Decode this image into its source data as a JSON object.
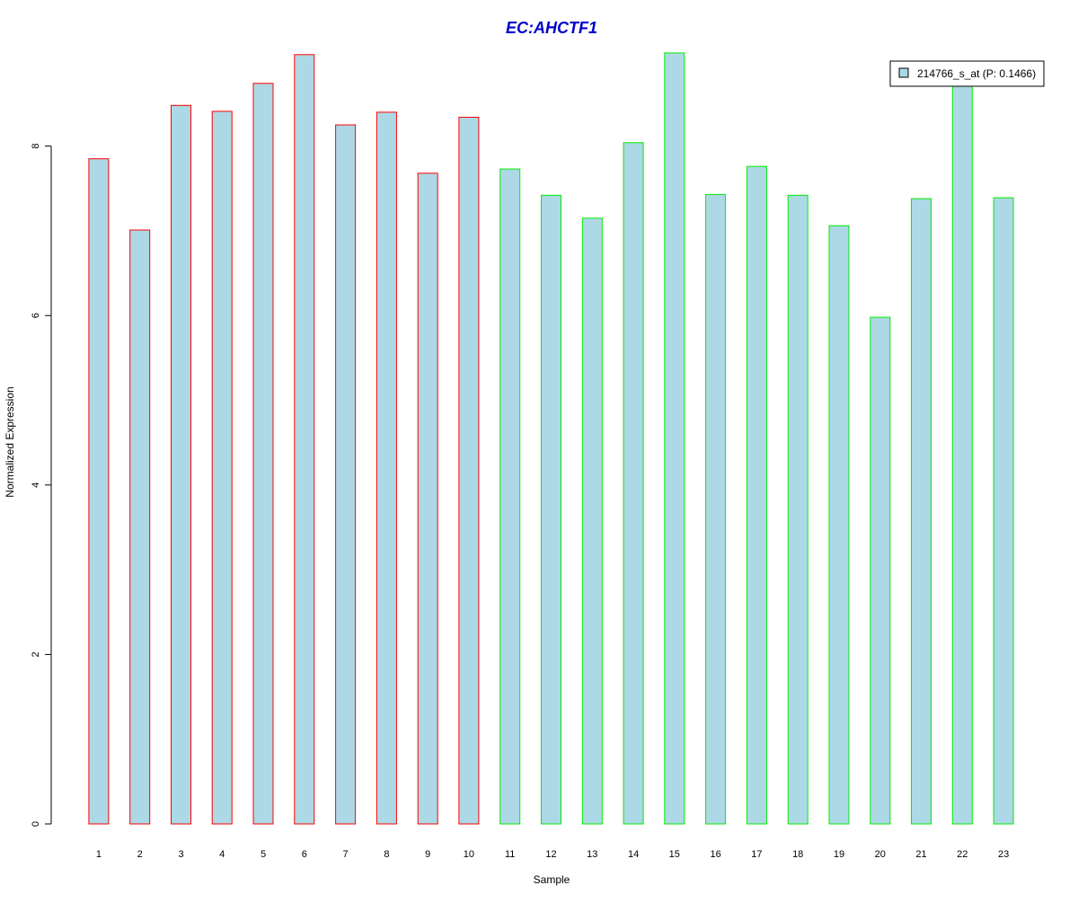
{
  "chart_data": {
    "type": "bar",
    "title": "EC:AHCTF1",
    "xlabel": "Sample",
    "ylabel": "Normalized Expression",
    "categories": [
      "1",
      "2",
      "3",
      "4",
      "5",
      "6",
      "7",
      "8",
      "9",
      "10",
      "11",
      "12",
      "13",
      "14",
      "15",
      "16",
      "17",
      "18",
      "19",
      "20",
      "21",
      "22",
      "23"
    ],
    "series": [
      {
        "name": "214766_s_at (P: 0.1466)",
        "values": [
          7.85,
          7.01,
          8.48,
          8.41,
          8.74,
          9.08,
          8.25,
          8.4,
          7.68,
          8.34,
          7.73,
          7.42,
          7.15,
          8.04,
          9.1,
          7.43,
          7.76,
          7.42,
          7.06,
          5.98,
          7.38,
          8.73,
          7.39
        ]
      }
    ],
    "groups": [
      {
        "samples": [
          "1",
          "2",
          "3",
          "4",
          "5",
          "6",
          "7",
          "8",
          "9",
          "10"
        ],
        "border_color": "#ff0000"
      },
      {
        "samples": [
          "11",
          "12",
          "13",
          "14",
          "15",
          "16",
          "17",
          "18",
          "19",
          "20",
          "21",
          "22",
          "23"
        ],
        "border_color": "#00ee00"
      }
    ],
    "yticks": [
      0,
      2,
      4,
      6,
      8
    ],
    "ylim": [
      0,
      9.1
    ],
    "grid": false,
    "legend_position": "top-right",
    "colors": {
      "bar_fill": "#add8e6",
      "title": "#0000cd",
      "axis": "#000000"
    }
  }
}
